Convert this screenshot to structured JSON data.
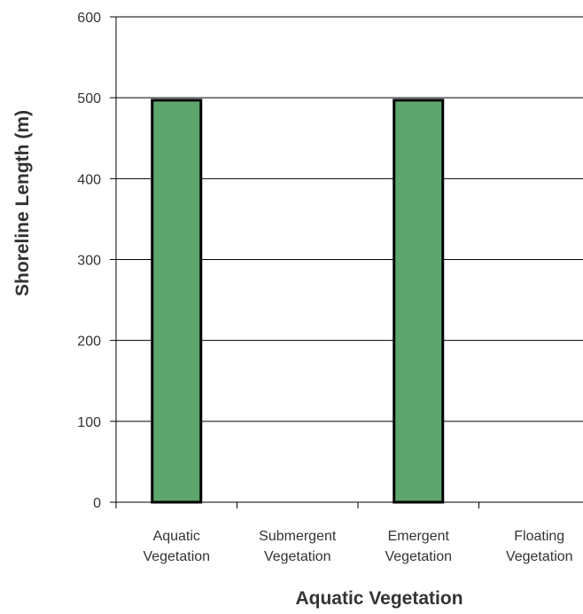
{
  "chart_data": {
    "type": "bar",
    "title": "",
    "xlabel": "Aquatic Vegetation",
    "ylabel": "Shoreline Length (m)",
    "ylim": [
      0,
      600
    ],
    "yticks": [
      0,
      100,
      200,
      300,
      400,
      500,
      600
    ],
    "categories": [
      [
        "Aquatic",
        "Vegetation"
      ],
      [
        "Submergent",
        "Vegetation"
      ],
      [
        "Emergent",
        "Vegetation"
      ],
      [
        "Floating",
        "Vegetation"
      ]
    ],
    "values": [
      497,
      0,
      497,
      0
    ],
    "bar_color": "#5fa56e",
    "bar_edge_color": "#000000",
    "grid": true
  }
}
